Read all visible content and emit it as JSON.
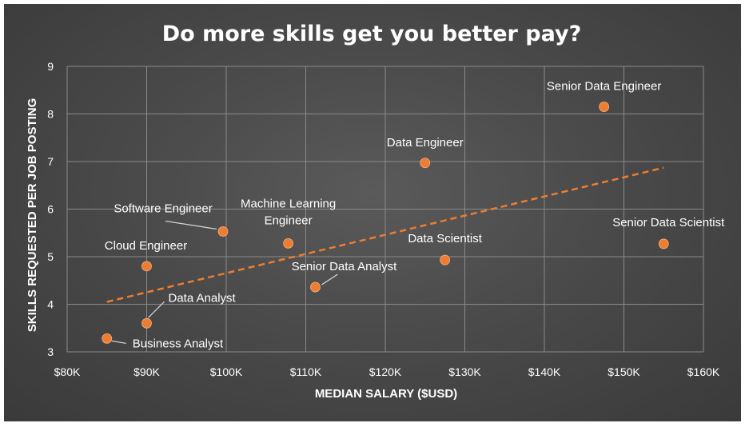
{
  "chart_data": {
    "type": "scatter",
    "title": "Do more skills get you better pay?",
    "xlabel": "MEDIAN SALARY ($USD)",
    "ylabel": "SKILLS REQUESTED PER JOB POSTING",
    "xlim": [
      80000,
      160000
    ],
    "ylim": [
      3,
      9
    ],
    "x_ticks": [
      80000,
      90000,
      100000,
      110000,
      120000,
      130000,
      140000,
      150000,
      160000
    ],
    "x_tick_labels": [
      "$80K",
      "$90K",
      "$100K",
      "$110K",
      "$120K",
      "$130K",
      "$140K",
      "$150K",
      "$160K"
    ],
    "y_ticks": [
      3,
      4,
      5,
      6,
      7,
      8,
      9
    ],
    "y_tick_labels": [
      "3",
      "4",
      "5",
      "6",
      "7",
      "8",
      "9"
    ],
    "grid": true,
    "marker_color": "#ed7d31",
    "trendline_color": "#ed7d31",
    "trendline": {
      "style": "dashed",
      "x": [
        85000,
        155000
      ],
      "y": [
        4.05,
        6.87
      ]
    },
    "points": [
      {
        "label": "Business Analyst",
        "x": 85000,
        "y": 3.28
      },
      {
        "label": "Data Analyst",
        "x": 90000,
        "y": 3.6
      },
      {
        "label": "Cloud Engineer",
        "x": 90000,
        "y": 4.8
      },
      {
        "label": "Software Engineer",
        "x": 99600,
        "y": 5.53
      },
      {
        "label": "Machine Learning Engineer",
        "x": 107800,
        "y": 5.28
      },
      {
        "label": "Senior Data Analyst",
        "x": 111200,
        "y": 4.36
      },
      {
        "label": "Data Engineer",
        "x": 125000,
        "y": 6.97
      },
      {
        "label": "Data Scientist",
        "x": 127500,
        "y": 4.93
      },
      {
        "label": "Senior Data Engineer",
        "x": 147500,
        "y": 8.15
      },
      {
        "label": "Senior Data Scientist",
        "x": 155000,
        "y": 5.27
      }
    ]
  }
}
